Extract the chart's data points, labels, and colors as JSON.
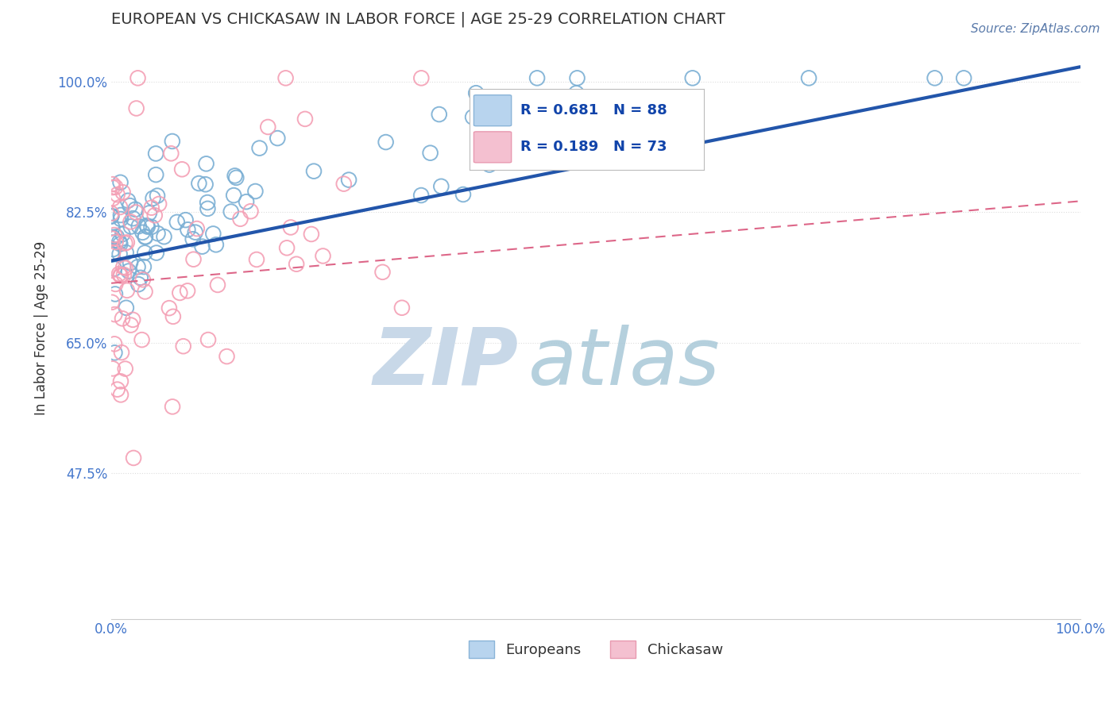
{
  "title": "EUROPEAN VS CHICKASAW IN LABOR FORCE | AGE 25-29 CORRELATION CHART",
  "source_text": "Source: ZipAtlas.com",
  "ylabel": "In Labor Force | Age 25-29",
  "xlim": [
    0.0,
    1.0
  ],
  "ylim": [
    0.28,
    1.06
  ],
  "yticks": [
    0.475,
    0.65,
    0.825,
    1.0
  ],
  "ytick_labels": [
    "47.5%",
    "65.0%",
    "82.5%",
    "100.0%"
  ],
  "xtick_labels": [
    "0.0%",
    "100.0%"
  ],
  "xticks": [
    0.0,
    1.0
  ],
  "european_R": 0.681,
  "european_N": 88,
  "chickasaw_R": 0.189,
  "chickasaw_N": 73,
  "european_color": "#7bafd4",
  "chickasaw_color": "#f4a0b5",
  "european_line_color": "#2255aa",
  "chickasaw_line_color": "#dd6688",
  "legend_box_color_european": "#b8d4ee",
  "legend_box_color_chickasaw": "#f4c0d0",
  "background_color": "#ffffff",
  "watermark_zip_color": "#c8d8e8",
  "watermark_atlas_color": "#a8c8d8",
  "title_color": "#333333",
  "source_color": "#5a7aaa",
  "axis_label_color": "#333333",
  "tick_label_color": "#4477cc",
  "grid_color": "#dddddd",
  "legend_text_color": "#1144aa"
}
